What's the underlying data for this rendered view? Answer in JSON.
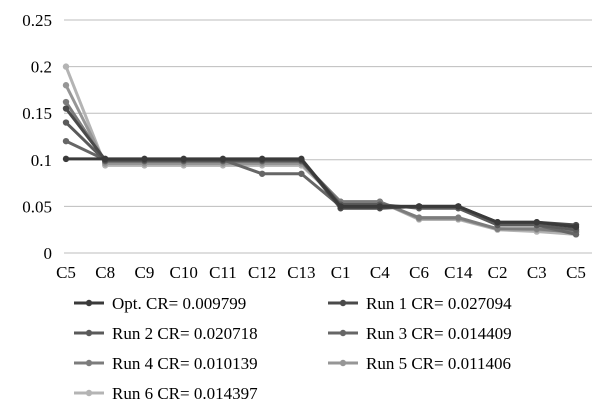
{
  "chart_data": {
    "type": "line",
    "title": "",
    "xlabel": "",
    "ylabel": "",
    "ylim": [
      0,
      0.25
    ],
    "grid": true,
    "legend_position": "bottom",
    "y_ticks": [
      "0",
      "0.05",
      "0.1",
      "0.15",
      "0.2",
      "0.25"
    ],
    "y_tick_values": [
      0,
      0.05,
      0.1,
      0.15,
      0.2,
      0.25
    ],
    "categories": [
      "C5",
      "C8",
      "C9",
      "C10",
      "C11",
      "C12",
      "C13",
      "C1",
      "C4",
      "C6",
      "C14",
      "C2",
      "C3",
      "C5"
    ],
    "series": [
      {
        "name": "Opt. CR= 0.009799",
        "color": "#3a3a3a",
        "values": [
          0.101,
          0.101,
          0.101,
          0.101,
          0.101,
          0.101,
          0.101,
          0.05,
          0.05,
          0.05,
          0.05,
          0.033,
          0.033,
          0.028
        ]
      },
      {
        "name": "Run 1 CR= 0.027094",
        "color": "#4a4a4a",
        "values": [
          0.155,
          0.1,
          0.1,
          0.1,
          0.1,
          0.1,
          0.1,
          0.048,
          0.048,
          0.05,
          0.05,
          0.033,
          0.033,
          0.03
        ]
      },
      {
        "name": "Run 2 CR= 0.020718",
        "color": "#5a5a5a",
        "values": [
          0.14,
          0.099,
          0.099,
          0.099,
          0.099,
          0.099,
          0.099,
          0.052,
          0.052,
          0.048,
          0.048,
          0.03,
          0.03,
          0.025
        ]
      },
      {
        "name": "Run 3 CR= 0.014409",
        "color": "#666666",
        "values": [
          0.12,
          0.1,
          0.1,
          0.1,
          0.1,
          0.085,
          0.085,
          0.05,
          0.05,
          0.05,
          0.05,
          0.03,
          0.03,
          0.02
        ]
      },
      {
        "name": "Run 4 CR= 0.010139",
        "color": "#7c7c7c",
        "values": [
          0.162,
          0.098,
          0.098,
          0.098,
          0.098,
          0.098,
          0.098,
          0.055,
          0.055,
          0.038,
          0.038,
          0.026,
          0.026,
          0.022
        ]
      },
      {
        "name": "Run 5 CR= 0.011406",
        "color": "#969696",
        "values": [
          0.18,
          0.096,
          0.096,
          0.096,
          0.096,
          0.096,
          0.096,
          0.055,
          0.055,
          0.037,
          0.037,
          0.026,
          0.025,
          0.023
        ]
      },
      {
        "name": "Run 6 CR= 0.014397",
        "color": "#b4b4b4",
        "values": [
          0.2,
          0.094,
          0.094,
          0.094,
          0.094,
          0.094,
          0.094,
          0.055,
          0.055,
          0.036,
          0.036,
          0.025,
          0.023,
          0.02
        ]
      }
    ]
  }
}
